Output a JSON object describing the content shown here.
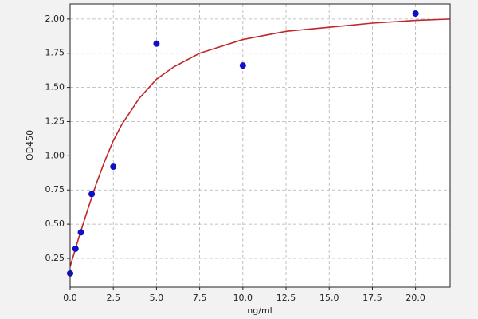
{
  "chart_data": {
    "type": "scatter",
    "x_label": "ng/ml",
    "y_label": "OD450",
    "xlim": [
      0,
      22
    ],
    "ylim": [
      0.04,
      2.11
    ],
    "xticks": [
      {
        "value": 0,
        "label": "0.0"
      },
      2.5,
      {
        "value": 5,
        "label": "5.0"
      },
      7.5,
      {
        "value": 10,
        "label": "10.0"
      },
      12.5,
      {
        "value": 15,
        "label": "15.0"
      },
      17.5,
      {
        "value": 20,
        "label": "20.0"
      }
    ],
    "yticks": [
      0.25,
      {
        "value": 0.5,
        "label": "0.50"
      },
      0.75,
      {
        "value": 1,
        "label": "1.00"
      },
      1.25,
      {
        "value": 1.5,
        "label": "1.50"
      },
      1.75,
      {
        "value": 2,
        "label": "2.00"
      }
    ],
    "grid": true,
    "series": [
      {
        "mode": "line",
        "color": "#c0262a",
        "x": [
          0,
          0.5,
          1,
          1.5,
          2,
          2.5,
          3,
          4,
          5,
          6,
          7.5,
          10,
          12.5,
          15,
          17.5,
          20,
          22
        ],
        "values": [
          0.19,
          0.4,
          0.6,
          0.79,
          0.96,
          1.11,
          1.23,
          1.42,
          1.56,
          1.65,
          1.75,
          1.85,
          1.91,
          1.94,
          1.97,
          1.99,
          2.0
        ]
      },
      {
        "mode": "markers",
        "color": "#1010c8",
        "x": [
          0,
          0.3125,
          0.625,
          1.25,
          2.5,
          5,
          10,
          20
        ],
        "values": [
          0.14,
          0.32,
          0.44,
          0.72,
          0.92,
          1.82,
          1.66,
          2.04
        ]
      }
    ]
  }
}
